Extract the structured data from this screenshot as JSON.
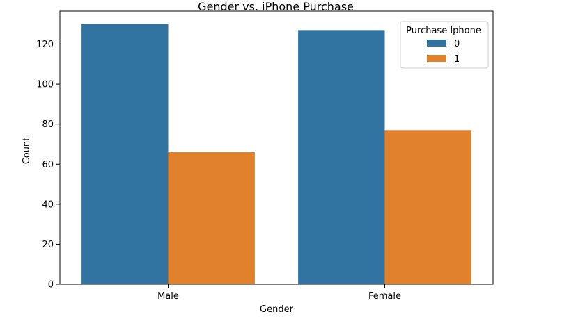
{
  "chart_data": {
    "type": "bar",
    "title": "Gender vs. iPhone Purchase",
    "xlabel": "Gender",
    "ylabel": "Count",
    "categories": [
      "Male",
      "Female"
    ],
    "series": [
      {
        "name": "0",
        "values": [
          130,
          127
        ],
        "color": "#3274a1"
      },
      {
        "name": "1",
        "values": [
          66,
          77
        ],
        "color": "#e1812c"
      }
    ],
    "ylim": [
      0,
      136.5
    ],
    "yticks": [
      0,
      20,
      40,
      60,
      80,
      100,
      120
    ],
    "grid": false,
    "legend": {
      "title": "Purchase Iphone",
      "placement": "top-right"
    }
  }
}
